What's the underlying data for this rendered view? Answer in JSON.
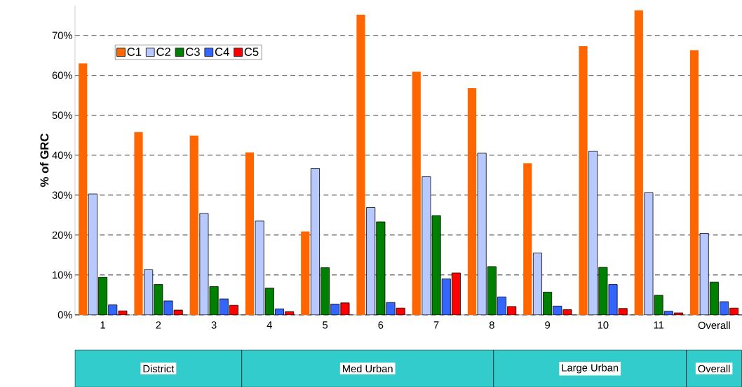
{
  "chart_data": {
    "type": "bar",
    "ylabel": "% of GRC",
    "categories": [
      "1",
      "2",
      "3",
      "4",
      "5",
      "6",
      "7",
      "8",
      "9",
      "10",
      "11",
      "Overall"
    ],
    "series": [
      {
        "name": "C1",
        "color": "#ff6600",
        "values": [
          63,
          45.8,
          44.9,
          40.7,
          20.9,
          75.2,
          60.9,
          56.8,
          38.0,
          67.3,
          76.3,
          66.3
        ]
      },
      {
        "name": "C2",
        "color": "#b8c9ff",
        "values": [
          30.3,
          11.3,
          25.4,
          23.5,
          36.7,
          26.9,
          34.6,
          40.5,
          15.5,
          41.0,
          30.6,
          20.4
        ]
      },
      {
        "name": "C3",
        "color": "#008000",
        "values": [
          9.4,
          7.6,
          7.1,
          6.7,
          11.8,
          23.3,
          24.9,
          12.1,
          5.7,
          11.9,
          4.9,
          8.2
        ]
      },
      {
        "name": "C4",
        "color": "#3366ff",
        "values": [
          2.5,
          3.5,
          4.0,
          1.5,
          2.7,
          3.1,
          9.0,
          4.5,
          2.2,
          7.6,
          0.9,
          3.3
        ]
      },
      {
        "name": "C5",
        "color": "#ff0000",
        "values": [
          1.0,
          1.2,
          2.4,
          0.8,
          3.0,
          1.7,
          10.5,
          2.1,
          1.3,
          1.6,
          0.5,
          1.7
        ]
      }
    ],
    "ylim": [
      0,
      77.5
    ],
    "yticks": [
      {
        "value": 0,
        "label": "0%"
      },
      {
        "value": 10,
        "label": "10%"
      },
      {
        "value": 20,
        "label": "20%"
      },
      {
        "value": 30,
        "label": "30%"
      },
      {
        "value": 40,
        "label": "40%"
      },
      {
        "value": 50,
        "label": "50%"
      },
      {
        "value": 60,
        "label": "60%"
      },
      {
        "value": 70,
        "label": "70%"
      }
    ],
    "grid": "y",
    "legend": "top left",
    "annotations": [
      "District",
      "Med Urban",
      "Large Urban",
      "Overall"
    ]
  }
}
